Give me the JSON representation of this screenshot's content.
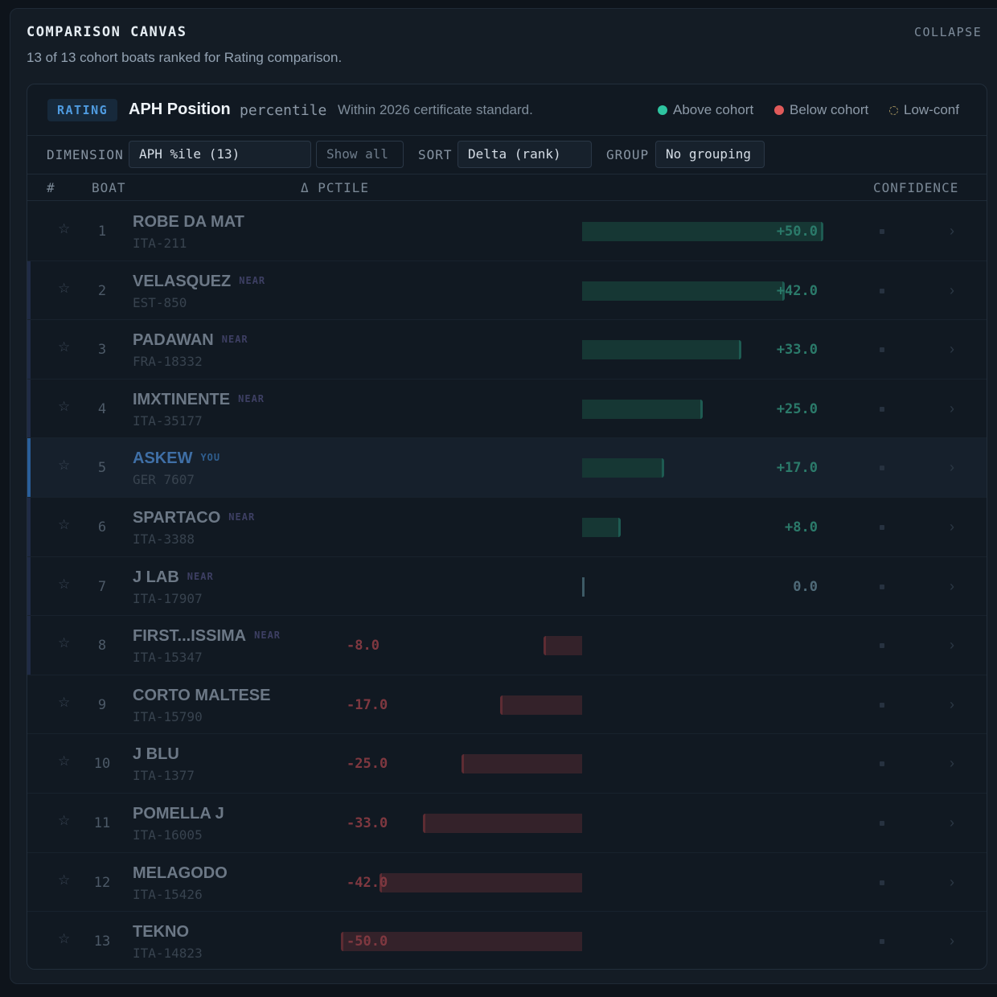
{
  "header": {
    "title": "COMPARISON CANVAS",
    "subtitle": "13 of 13 cohort boats ranked for Rating comparison.",
    "collapse_label": "COLLAPSE"
  },
  "metric": {
    "tag": "RATING",
    "name": "APH Position",
    "unit": "percentile",
    "note": "Within 2026 certificate standard."
  },
  "legend": {
    "above": "Above cohort",
    "below": "Below cohort",
    "lowconf": "Low-conf",
    "above_color": "#2ec4a0",
    "below_color": "#e05a5a"
  },
  "controls": {
    "dimension_label": "DIMENSION",
    "dimension_value": "APH %ile (13)",
    "show_all": "Show all",
    "sort_label": "SORT",
    "sort_value": "Delta (rank)",
    "group_label": "GROUP",
    "group_value": "No grouping"
  },
  "columns": {
    "rank": "#",
    "boat": "BOAT",
    "delta": "Δ PCTILE",
    "confidence": "CONFIDENCE"
  },
  "delta_range": [
    -50,
    50
  ],
  "boats": [
    {
      "rank": "1",
      "name": "ROBE DA MAT",
      "badge": "",
      "sail": "ITA-211",
      "delta": 50,
      "delta_label": "+50.0"
    },
    {
      "rank": "2",
      "name": "VELASQUEZ",
      "badge": "NEAR",
      "sail": "EST-850",
      "delta": 42,
      "delta_label": "+42.0"
    },
    {
      "rank": "3",
      "name": "PADAWAN",
      "badge": "NEAR",
      "sail": "FRA-18332",
      "delta": 33,
      "delta_label": "+33.0"
    },
    {
      "rank": "4",
      "name": "IMXTINENTE",
      "badge": "NEAR",
      "sail": "ITA-35177",
      "delta": 25,
      "delta_label": "+25.0"
    },
    {
      "rank": "5",
      "name": "ASKEW",
      "badge": "YOU",
      "sail": "GER 7607",
      "delta": 17,
      "delta_label": "+17.0",
      "you": true
    },
    {
      "rank": "6",
      "name": "SPARTACO",
      "badge": "NEAR",
      "sail": "ITA-3388",
      "delta": 8,
      "delta_label": "+8.0"
    },
    {
      "rank": "7",
      "name": "J LAB",
      "badge": "NEAR",
      "sail": "ITA-17907",
      "delta": 0,
      "delta_label": "0.0"
    },
    {
      "rank": "8",
      "name": "FIRST...ISSIMA",
      "badge": "NEAR",
      "sail": "ITA-15347",
      "delta": -8,
      "delta_label": "-8.0"
    },
    {
      "rank": "9",
      "name": "CORTO MALTESE",
      "badge": "",
      "sail": "ITA-15790",
      "delta": -17,
      "delta_label": "-17.0"
    },
    {
      "rank": "10",
      "name": "J BLU",
      "badge": "",
      "sail": "ITA-1377",
      "delta": -25,
      "delta_label": "-25.0"
    },
    {
      "rank": "11",
      "name": "POMELLA J",
      "badge": "",
      "sail": "ITA-16005",
      "delta": -33,
      "delta_label": "-33.0"
    },
    {
      "rank": "12",
      "name": "MELAGODO",
      "badge": "",
      "sail": "ITA-15426",
      "delta": -42,
      "delta_label": "-42.0"
    },
    {
      "rank": "13",
      "name": "TEKNO",
      "badge": "",
      "sail": "ITA-14823",
      "delta": -50,
      "delta_label": "-50.0"
    }
  ]
}
